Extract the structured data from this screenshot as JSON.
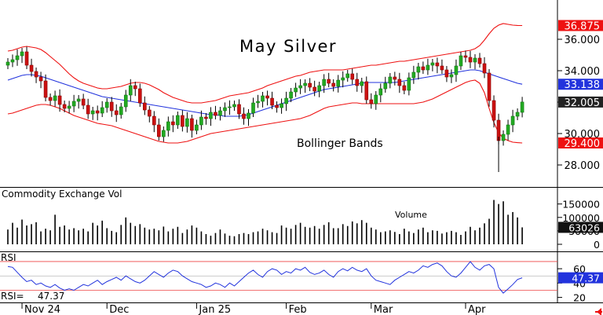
{
  "chart_data": {
    "type": "candlestick",
    "title": "May Silver",
    "annotation": "Bollinger Bands",
    "price_ticks": [
      "36.000",
      "34.000",
      "32.000",
      "30.000",
      "28.000"
    ],
    "price_tick_values": [
      36,
      34,
      32,
      30,
      28
    ],
    "price_range": [
      26.9,
      38.3
    ],
    "price_badges": [
      {
        "label": "36.875",
        "value": 36.875,
        "color": "#ee1111"
      },
      {
        "label": "33.138",
        "value": 33.138,
        "color": "#2233dd"
      },
      {
        "label": "32.005",
        "value": 32.005,
        "color": "#222222"
      },
      {
        "label": "29.400",
        "value": 29.4,
        "color": "#ee1111"
      }
    ],
    "volume": {
      "title": "Commodity Exchange Vol",
      "annotation": "Volume",
      "ticks": [
        "150000",
        "100000",
        "50000",
        "0"
      ],
      "tick_values": [
        150000,
        100000,
        50000,
        0
      ],
      "range": [
        0,
        190000
      ],
      "badge": "63026",
      "badge_value": 63026,
      "values": [
        55000,
        80000,
        62000,
        92000,
        70000,
        75000,
        82000,
        48000,
        58000,
        52000,
        110000,
        65000,
        70000,
        55000,
        60000,
        52000,
        58000,
        48000,
        80000,
        70000,
        88000,
        60000,
        50000,
        45000,
        72000,
        100000,
        80000,
        68000,
        75000,
        62000,
        55000,
        58000,
        52000,
        66000,
        48000,
        58000,
        65000,
        42000,
        55000,
        70000,
        62000,
        48000,
        38000,
        32000,
        42000,
        55000,
        40000,
        32000,
        30000,
        38000,
        42000,
        38000,
        45000,
        48000,
        58000,
        52000,
        45000,
        42000,
        70000,
        62000,
        58000,
        72000,
        80000,
        65000,
        62000,
        68000,
        58000,
        72000,
        82000,
        60000,
        60000,
        75000,
        68000,
        85000,
        78000,
        90000,
        80000,
        62000,
        55000,
        45000,
        48000,
        52000,
        46000,
        38000,
        58000,
        48000,
        42000,
        55000,
        62000,
        45000,
        52000,
        50000,
        40000,
        45000,
        50000,
        45000,
        35000,
        48000,
        65000,
        52000,
        62000,
        78000,
        95000,
        165000,
        150000,
        160000,
        110000,
        120000,
        100000,
        63026
      ]
    },
    "rsi": {
      "title": "RSI",
      "readout_label": "RSI=",
      "readout_value": "47.37",
      "ticks": [
        "60",
        "40",
        "20"
      ],
      "tick_values": [
        60,
        40,
        20
      ],
      "range": [
        13,
        82
      ],
      "badge": "47.37",
      "overbought": 70,
      "oversold": 30,
      "values": [
        63,
        62,
        55,
        48,
        42,
        44,
        38,
        40,
        36,
        34,
        38,
        33,
        30,
        32,
        30,
        34,
        38,
        36,
        40,
        44,
        38,
        42,
        45,
        48,
        44,
        50,
        46,
        42,
        40,
        44,
        50,
        56,
        52,
        48,
        54,
        58,
        56,
        50,
        46,
        42,
        40,
        38,
        34,
        36,
        40,
        38,
        34,
        40,
        36,
        42,
        48,
        54,
        58,
        52,
        48,
        56,
        60,
        58,
        52,
        56,
        54,
        60,
        58,
        62,
        55,
        52,
        54,
        58,
        52,
        48,
        56,
        60,
        57,
        62,
        58,
        56,
        60,
        50,
        44,
        42,
        40,
        38,
        44,
        48,
        52,
        56,
        54,
        58,
        64,
        62,
        66,
        68,
        64,
        56,
        50,
        48,
        54,
        62,
        70,
        62,
        58,
        64,
        66,
        60,
        34,
        26,
        32,
        38,
        45,
        47.37
      ]
    },
    "x_labels": [
      {
        "label": "Nov 24",
        "index": 4
      },
      {
        "label": "Dec",
        "index": 22
      },
      {
        "label": "Jan 25",
        "index": 41
      },
      {
        "label": "Feb",
        "index": 60
      },
      {
        "label": "Mar",
        "index": 78
      },
      {
        "label": "Apr",
        "index": 98
      }
    ],
    "series": {
      "close": [
        34.55,
        34.7,
        34.95,
        35.2,
        34.35,
        33.95,
        33.6,
        33.35,
        32.3,
        32.1,
        32.4,
        31.85,
        31.6,
        31.75,
        32.05,
        32.2,
        31.8,
        31.25,
        31.45,
        31.3,
        31.65,
        32.0,
        31.45,
        31.2,
        31.7,
        32.45,
        33.05,
        32.85,
        31.95,
        31.5,
        31.1,
        30.55,
        29.8,
        30.2,
        30.75,
        30.55,
        31.15,
        30.45,
        30.95,
        30.2,
        30.55,
        31.05,
        30.95,
        31.35,
        31.15,
        31.45,
        31.65,
        31.7,
        31.85,
        31.25,
        30.95,
        31.3,
        31.95,
        32.05,
        32.4,
        32.25,
        31.8,
        31.65,
        31.9,
        32.25,
        32.65,
        32.9,
        33.05,
        33.2,
        32.95,
        32.7,
        33.05,
        33.45,
        33.2,
        33.0,
        33.4,
        33.55,
        33.8,
        33.45,
        33.05,
        33.3,
        32.15,
        31.9,
        32.45,
        32.85,
        33.2,
        33.6,
        33.45,
        33.05,
        32.75,
        33.55,
        33.9,
        34.25,
        34.05,
        34.35,
        34.5,
        34.3,
        34.05,
        33.6,
        33.75,
        34.3,
        34.95,
        34.85,
        34.55,
        34.8,
        34.45,
        33.85,
        32.1,
        30.85,
        29.55,
        29.95,
        30.55,
        31.1,
        31.35,
        32.005
      ],
      "bb_upper": [
        35.25,
        35.3,
        35.4,
        35.5,
        35.55,
        35.5,
        35.45,
        35.35,
        35.15,
        34.9,
        34.65,
        34.4,
        34.1,
        33.8,
        33.55,
        33.35,
        33.2,
        33.1,
        33.0,
        32.9,
        32.85,
        32.85,
        32.9,
        32.95,
        33.0,
        33.1,
        33.2,
        33.25,
        33.25,
        33.2,
        33.1,
        32.95,
        32.8,
        32.6,
        32.45,
        32.3,
        32.2,
        32.1,
        32.0,
        31.95,
        31.95,
        31.95,
        32.0,
        32.05,
        32.1,
        32.2,
        32.3,
        32.4,
        32.45,
        32.5,
        32.55,
        32.6,
        32.7,
        32.8,
        32.9,
        33.05,
        33.15,
        33.25,
        33.35,
        33.45,
        33.55,
        33.65,
        33.7,
        33.8,
        33.9,
        33.95,
        34.0,
        34.05,
        34.05,
        34.05,
        34.05,
        34.05,
        34.1,
        34.15,
        34.2,
        34.25,
        34.3,
        34.35,
        34.35,
        34.4,
        34.45,
        34.5,
        34.55,
        34.6,
        34.6,
        34.65,
        34.7,
        34.75,
        34.8,
        34.85,
        34.9,
        34.95,
        35.0,
        35.05,
        35.1,
        35.15,
        35.2,
        35.25,
        35.3,
        35.4,
        35.6,
        35.95,
        36.35,
        36.7,
        36.9,
        37.0,
        36.95,
        36.9,
        36.88,
        36.875
      ],
      "bb_mid": [
        33.4,
        33.5,
        33.6,
        33.7,
        33.75,
        33.75,
        33.7,
        33.65,
        33.55,
        33.45,
        33.35,
        33.25,
        33.15,
        33.05,
        32.95,
        32.85,
        32.75,
        32.65,
        32.55,
        32.45,
        32.35,
        32.3,
        32.25,
        32.2,
        32.15,
        32.1,
        32.05,
        32.0,
        31.95,
        31.9,
        31.85,
        31.8,
        31.75,
        31.7,
        31.65,
        31.6,
        31.55,
        31.5,
        31.45,
        31.4,
        31.35,
        31.3,
        31.25,
        31.2,
        31.2,
        31.15,
        31.1,
        31.1,
        31.1,
        31.1,
        31.15,
        31.2,
        31.3,
        31.4,
        31.5,
        31.6,
        31.7,
        31.8,
        31.9,
        32.0,
        32.1,
        32.2,
        32.3,
        32.4,
        32.5,
        32.6,
        32.7,
        32.8,
        32.85,
        32.9,
        32.95,
        33.0,
        33.05,
        33.1,
        33.15,
        33.2,
        33.25,
        33.25,
        33.25,
        33.25,
        33.25,
        33.25,
        33.25,
        33.3,
        33.35,
        33.4,
        33.45,
        33.5,
        33.55,
        33.6,
        33.65,
        33.7,
        33.75,
        33.8,
        33.85,
        33.9,
        33.95,
        34.0,
        34.05,
        34.05,
        34.0,
        33.9,
        33.8,
        33.7,
        33.6,
        33.5,
        33.4,
        33.3,
        33.2,
        33.138
      ],
      "bb_lower": [
        31.25,
        31.3,
        31.4,
        31.5,
        31.6,
        31.7,
        31.8,
        31.85,
        31.85,
        31.8,
        31.7,
        31.6,
        31.45,
        31.3,
        31.15,
        31.05,
        30.95,
        30.85,
        30.75,
        30.65,
        30.6,
        30.55,
        30.5,
        30.4,
        30.3,
        30.2,
        30.1,
        30.0,
        29.9,
        29.8,
        29.7,
        29.6,
        29.5,
        29.45,
        29.4,
        29.4,
        29.4,
        29.45,
        29.5,
        29.6,
        29.7,
        29.8,
        29.9,
        30.0,
        30.05,
        30.1,
        30.15,
        30.2,
        30.25,
        30.3,
        30.35,
        30.4,
        30.45,
        30.5,
        30.55,
        30.6,
        30.65,
        30.7,
        30.75,
        30.8,
        30.85,
        30.9,
        30.95,
        31.05,
        31.15,
        31.3,
        31.45,
        31.6,
        31.7,
        31.75,
        31.8,
        31.85,
        31.9,
        31.95,
        31.95,
        31.9,
        31.9,
        31.9,
        31.9,
        31.9,
        31.9,
        31.9,
        31.9,
        31.9,
        31.9,
        31.9,
        31.9,
        31.95,
        32.0,
        32.1,
        32.2,
        32.35,
        32.5,
        32.65,
        32.8,
        32.95,
        33.1,
        33.25,
        33.35,
        33.4,
        33.2,
        32.6,
        31.6,
        30.7,
        30.05,
        29.7,
        29.55,
        29.45,
        29.42,
        29.4
      ]
    }
  }
}
